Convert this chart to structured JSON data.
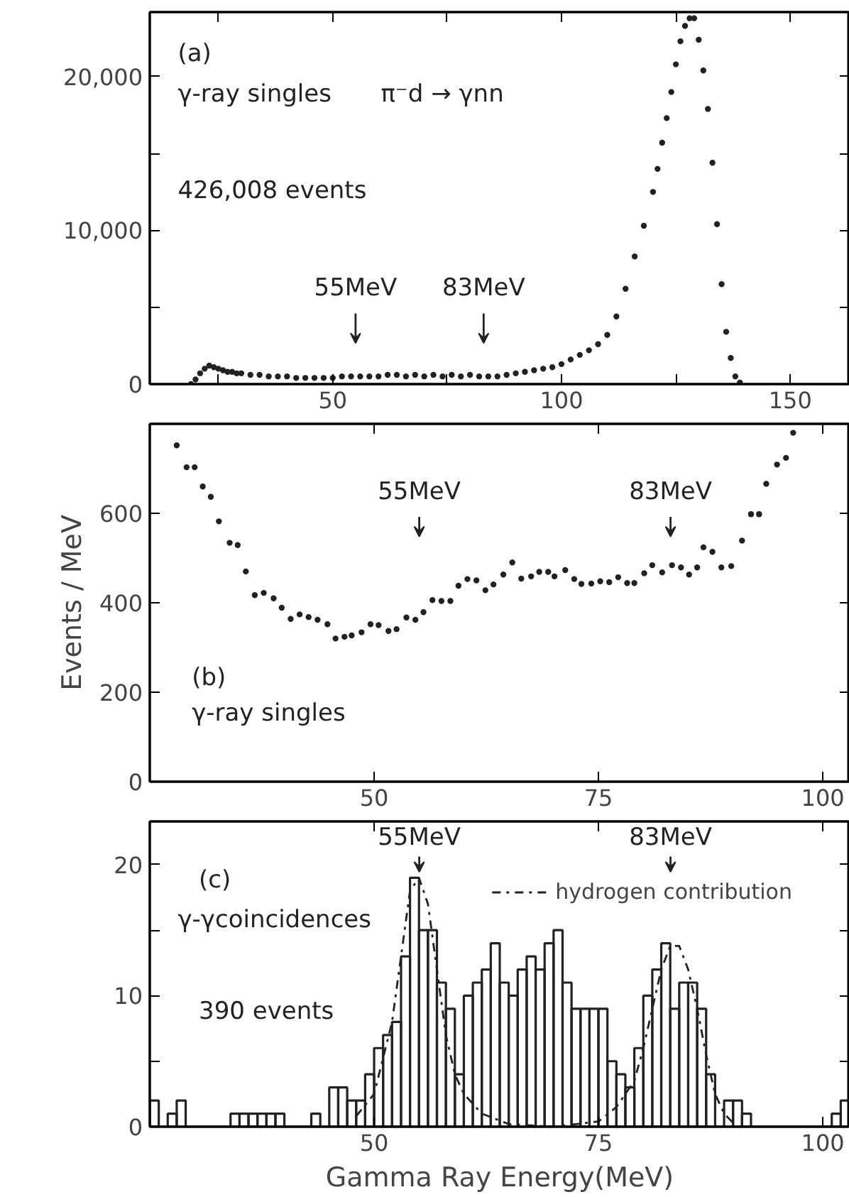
{
  "chart_data": [
    {
      "type": "scatter",
      "marker": "circle",
      "color": "#222222",
      "x": [
        19,
        20,
        21,
        22,
        23,
        24,
        25,
        26,
        27,
        28,
        29,
        30,
        32,
        34,
        36,
        38,
        40,
        42,
        44,
        46,
        48,
        50,
        52,
        54,
        56,
        58,
        60,
        62,
        64,
        66,
        68,
        70,
        72,
        74,
        76,
        78,
        80,
        82,
        84,
        86,
        88,
        90,
        92,
        94,
        96,
        98,
        100,
        102,
        104,
        106,
        108,
        110,
        112,
        114,
        116,
        118,
        120,
        121,
        122,
        123,
        124,
        125,
        126,
        127,
        128,
        129,
        130,
        131,
        132,
        133,
        134,
        135,
        136,
        137,
        138,
        139
      ],
      "values": [
        0,
        300,
        700,
        1000,
        1200,
        1100,
        1000,
        900,
        800,
        800,
        700,
        700,
        600,
        600,
        500,
        500,
        500,
        400,
        400,
        400,
        400,
        400,
        500,
        500,
        500,
        500,
        500,
        600,
        600,
        500,
        600,
        500,
        600,
        500,
        600,
        500,
        600,
        500,
        500,
        500,
        600,
        700,
        800,
        900,
        1000,
        1100,
        1300,
        1600,
        1900,
        2200,
        2600,
        3200,
        4400,
        6200,
        8300,
        10300,
        12500,
        14000,
        15700,
        17300,
        19000,
        20800,
        22300,
        23300,
        23800,
        23800,
        22400,
        20400,
        17900,
        14400,
        10400,
        6500,
        3400,
        1700,
        500,
        100
      ],
      "xlim": [
        10,
        163
      ],
      "ylim": [
        0,
        24200
      ],
      "xticks": [
        {
          "value": 25,
          "label": null
        },
        50,
        {
          "value": 75,
          "label": null
        },
        100,
        {
          "value": 125,
          "label": null
        },
        150
      ],
      "yticks": [
        0,
        {
          "value": 5000,
          "label": null
        },
        {
          "value": 10000,
          "label": "10,000"
        },
        {
          "value": 15000,
          "label": null
        },
        {
          "value": 20000,
          "label": "20,000"
        }
      ],
      "annotations": [
        "(a)",
        "γ-ray singles",
        "π⁻d → γnn",
        "426,008 events",
        "55MeV",
        "83MeV"
      ]
    },
    {
      "type": "scatter",
      "marker": "circle",
      "color": "#222222",
      "ylabel": "Events / MeV",
      "x": [
        28.0,
        29.1,
        30.0,
        30.9,
        31.8,
        32.7,
        33.9,
        34.8,
        35.7,
        36.7,
        37.7,
        38.8,
        39.7,
        40.7,
        41.7,
        42.7,
        43.7,
        44.8,
        45.7,
        46.7,
        47.5,
        48.6,
        49.6,
        50.5,
        51.6,
        52.5,
        53.6,
        54.6,
        55.5,
        56.5,
        57.5,
        58.5,
        59.4,
        60.4,
        61.4,
        62.4,
        63.3,
        64.4,
        65.4,
        66.4,
        67.5,
        68.4,
        69.4,
        70.1,
        71.3,
        72.3,
        73.1,
        74.2,
        75.2,
        76.2,
        77.2,
        78.2,
        79.0,
        80.1,
        81.0,
        82.1,
        83.2,
        84.2,
        85.1,
        86.0,
        86.7,
        87.7,
        88.7,
        89.8,
        91.0,
        92.0,
        92.9,
        93.7,
        94.9,
        95.9,
        96.7
      ],
      "values": [
        752,
        703,
        703,
        660,
        637,
        582,
        534,
        529,
        470,
        417,
        422,
        410,
        389,
        364,
        374,
        368,
        362,
        352,
        320,
        324,
        327,
        334,
        352,
        350,
        337,
        341,
        367,
        362,
        379,
        406,
        404,
        404,
        438,
        453,
        450,
        428,
        441,
        463,
        490,
        454,
        459,
        469,
        469,
        459,
        473,
        453,
        442,
        443,
        448,
        446,
        457,
        444,
        444,
        466,
        484,
        468,
        484,
        479,
        463,
        479,
        524,
        514,
        479,
        482,
        539,
        598,
        598,
        666,
        709,
        724,
        780
      ],
      "xlim": [
        25,
        103
      ],
      "ylim": [
        0,
        800
      ],
      "xticks": [
        50,
        75,
        100
      ],
      "yticks": [
        0,
        200,
        400,
        600
      ],
      "annotations": [
        "(b)",
        "γ-ray singles",
        "55MeV",
        "83MeV"
      ]
    },
    {
      "type": "histogram",
      "xlabel": "Gamma Ray Energy(MeV)",
      "legend": "top right",
      "xlim": [
        25,
        103
      ],
      "ylim": [
        0,
        23.3
      ],
      "xticks": [
        50,
        75,
        100
      ],
      "yticks": [
        0,
        {
          "value": 5,
          "label": null
        },
        10,
        {
          "value": 15,
          "label": null
        },
        20
      ],
      "series": [
        {
          "type": "histogram",
          "color": "#222222",
          "bins": [
            25,
            26,
            27,
            28,
            29,
            30,
            31,
            32,
            33,
            34,
            35,
            36,
            37,
            38,
            39,
            40,
            41,
            42,
            43,
            44,
            45,
            46,
            47,
            48,
            49,
            50,
            51,
            52,
            53,
            54,
            55,
            56,
            57,
            58,
            59,
            60,
            61,
            62,
            63,
            64,
            65,
            66,
            67,
            68,
            69,
            70,
            71,
            72,
            73,
            74,
            75,
            76,
            77,
            78,
            79,
            80,
            81,
            82,
            83,
            84,
            85,
            86,
            87,
            88,
            89,
            90,
            91,
            92,
            93,
            94,
            95,
            96,
            97,
            98,
            99,
            100,
            101,
            102,
            103
          ],
          "values": [
            2,
            0,
            1,
            2,
            0,
            0,
            0,
            0,
            0,
            1,
            1,
            1,
            1,
            1,
            1,
            0,
            0,
            0,
            1,
            0,
            3,
            3,
            2,
            2,
            4,
            6,
            7,
            8,
            13,
            19,
            15,
            15,
            11,
            9,
            4,
            10,
            11,
            12,
            14,
            11,
            10,
            12,
            13,
            12,
            14,
            15,
            11,
            9,
            9,
            9,
            9,
            5,
            4,
            3,
            6,
            10,
            12,
            14,
            9,
            11,
            11,
            9,
            4,
            0,
            2,
            2,
            1,
            0,
            0,
            0,
            0,
            0,
            0,
            0,
            0,
            0,
            1,
            2
          ]
        },
        {
          "type": "line",
          "name": "hydrogen contribution",
          "color": "#222222",
          "line_style": "dashdot",
          "x": [
            48,
            50,
            52,
            53,
            54,
            55,
            56,
            57,
            58,
            59,
            60,
            62,
            65,
            70,
            75,
            77,
            79,
            80,
            81,
            82,
            83,
            84,
            85,
            86,
            87,
            88,
            89,
            90
          ],
          "values": [
            0.8,
            2.5,
            8,
            13,
            18,
            19,
            17,
            12,
            7,
            4,
            2.5,
            1,
            0.2,
            0,
            0.4,
            1.5,
            3.5,
            6,
            9,
            12,
            13.8,
            13.8,
            12,
            9,
            5.5,
            2.5,
            1,
            0.3
          ]
        }
      ],
      "annotations": [
        "(c)",
        "γ-γcoincidences",
        "390 events",
        "55MeV",
        "83MeV"
      ]
    }
  ]
}
